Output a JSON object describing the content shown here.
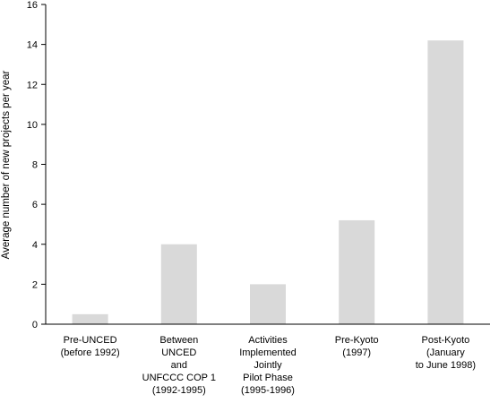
{
  "chart_data": {
    "type": "bar",
    "categories": [
      [
        "Pre-UNCED",
        "(before 1992)"
      ],
      [
        "Between",
        "UNCED",
        "and",
        "UNFCCC COP 1",
        "(1992-1995)"
      ],
      [
        "Activities",
        "Implemented",
        "Jointly",
        "Pilot Phase",
        "(1995-1996)"
      ],
      [
        "Pre-Kyoto",
        "(1997)"
      ],
      [
        "Post-Kyoto",
        "(January",
        "to June 1998)"
      ]
    ],
    "values": [
      0.5,
      4.0,
      2.0,
      5.2,
      14.2
    ],
    "ylabel": "Average number of new projects per year",
    "xlabel": "",
    "ylim": [
      0,
      16
    ],
    "yticks": [
      0,
      2,
      4,
      6,
      8,
      10,
      12,
      14,
      16
    ],
    "bar_color": "#d9d9d9",
    "axis_color": "#000000",
    "grid": false,
    "legend": "none"
  }
}
